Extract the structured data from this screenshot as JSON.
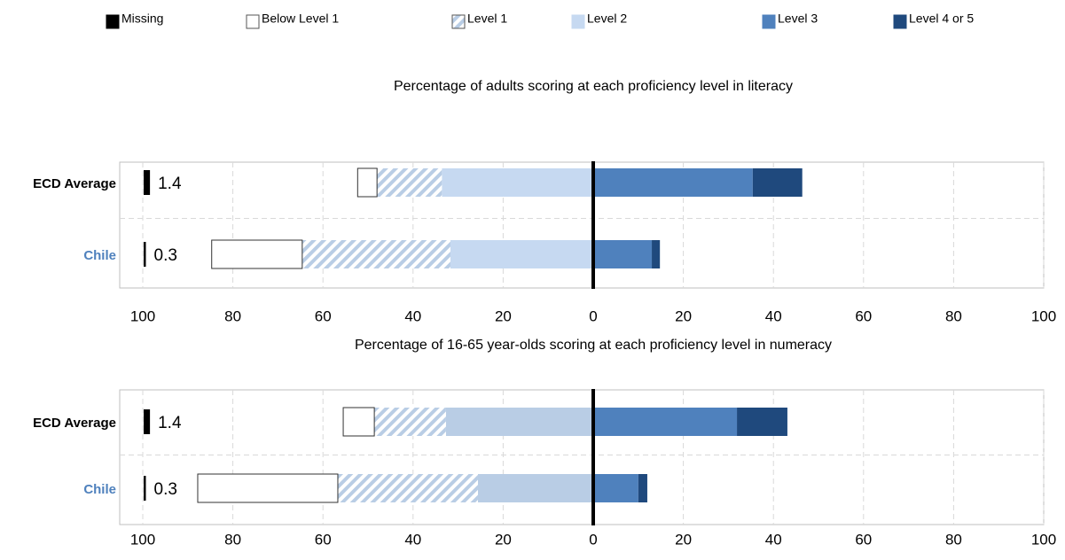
{
  "chart_data": [
    {
      "type": "diverging-bar",
      "title": "Percentage of adults scoring at each proficiency level in literacy",
      "categories": [
        "ECD Average",
        "Chile"
      ],
      "category_colors": [
        "#000000",
        "#4f81bd"
      ],
      "series": [
        {
          "name": "Missing",
          "color": "#000000",
          "stack": false,
          "values": [
            1.4,
            0.3
          ]
        },
        {
          "name": "Below Level 1",
          "color": "#ffffff",
          "values": [
            -4.3,
            -20.1
          ]
        },
        {
          "name": "Level 1",
          "color": "hatch",
          "values": [
            -14.4,
            -32.9
          ]
        },
        {
          "name": "Level 2",
          "color": "#c6d9f1",
          "values": [
            -33.6,
            -31.7
          ]
        },
        {
          "name": "Level 3",
          "color": "#4f81bd",
          "values": [
            35.4,
            13.0
          ]
        },
        {
          "name": "Level 4 or 5",
          "color": "#1f497d",
          "values": [
            11.0,
            1.8
          ]
        }
      ],
      "xlim": [
        -100,
        100
      ],
      "xticks": [
        {
          "value": -100,
          "label": "100"
        },
        {
          "value": -80,
          "label": "80"
        },
        {
          "value": -60,
          "label": "60"
        },
        {
          "value": -40,
          "label": "40"
        },
        {
          "value": -20,
          "label": "20"
        },
        0,
        20,
        40,
        60,
        80,
        100
      ],
      "grid": true
    },
    {
      "type": "diverging-bar",
      "title": "Percentage of 16-65 year-olds scoring at each proficiency level in numeracy",
      "categories": [
        "ECD Average",
        "Chile"
      ],
      "category_colors": [
        "#000000",
        "#4f81bd"
      ],
      "series": [
        {
          "name": "Missing",
          "color": "#000000",
          "stack": false,
          "values": [
            1.4,
            0.3
          ]
        },
        {
          "name": "Below Level 1",
          "color": "#ffffff",
          "values": [
            -6.9,
            -31.1
          ]
        },
        {
          "name": "Level 1",
          "color": "hatch",
          "values": [
            -15.9,
            -31.1
          ]
        },
        {
          "name": "Level 2",
          "color": "#b9cde5",
          "values": [
            -32.7,
            -25.6
          ]
        },
        {
          "name": "Level 3",
          "color": "#4f81bd",
          "values": [
            31.9,
            10.0
          ]
        },
        {
          "name": "Level 4 or 5",
          "color": "#1f497d",
          "values": [
            11.2,
            2.0
          ]
        }
      ],
      "xlim": [
        -100,
        100
      ],
      "xticks": [
        {
          "value": -100,
          "label": "100"
        },
        {
          "value": -80,
          "label": "80"
        },
        {
          "value": -60,
          "label": "60"
        },
        {
          "value": -40,
          "label": "40"
        },
        {
          "value": -20,
          "label": "20"
        },
        0,
        20,
        40,
        60,
        80,
        100
      ],
      "grid": true
    }
  ]
}
